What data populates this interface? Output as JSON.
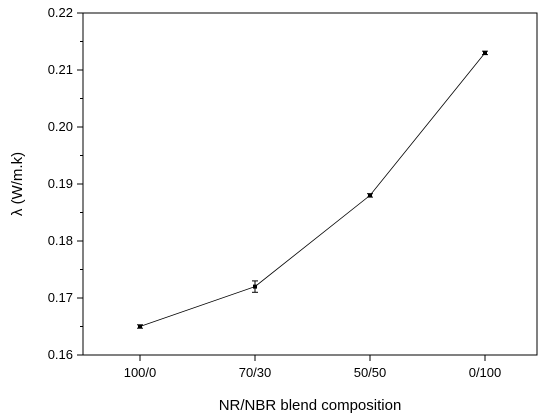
{
  "chart_data": {
    "type": "line",
    "categories": [
      "100/0",
      "70/30",
      "50/50",
      "0/100"
    ],
    "series": [
      {
        "values": [
          0.165,
          0.172,
          0.188,
          0.213
        ],
        "errors": [
          0.0003,
          0.001,
          0.0003,
          0.0003
        ],
        "marker": "square",
        "color": "#000000"
      }
    ],
    "xlabel": "NR/NBR blend composition",
    "ylabel": "λ (W/m.k)",
    "ylim": [
      0.16,
      0.22
    ],
    "yticks": [
      "0.16",
      "0.17",
      "0.18",
      "0.19",
      "0.20",
      "0.21",
      "0.22"
    ],
    "grid": false
  }
}
